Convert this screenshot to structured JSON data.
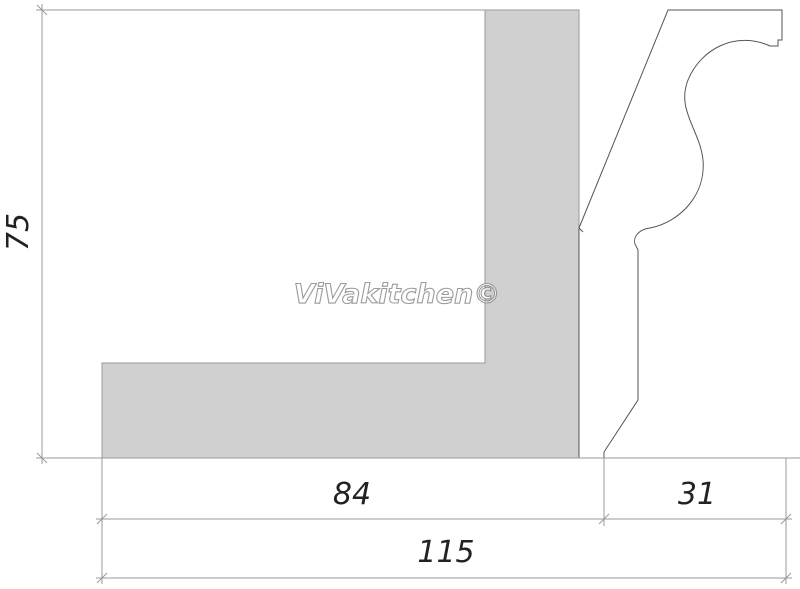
{
  "dimensions": {
    "height_label": "75",
    "left_width_label": "84",
    "right_width_label": "31",
    "total_width_label": "115"
  },
  "watermark": "ViVakitchen©",
  "colors": {
    "profile_fill": "#d0d0d0",
    "line": "#555555",
    "dimension_line": "#9a9a9a"
  }
}
